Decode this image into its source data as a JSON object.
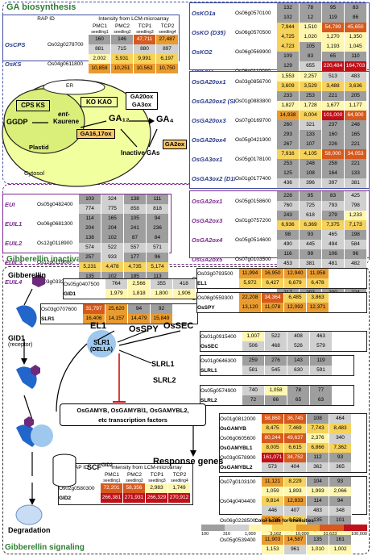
{
  "sections": {
    "biosynthesis": "GA biosynthesis",
    "inactivation": "Gibberellin inactivation",
    "signaling": "Gibberellin signaling"
  },
  "header": {
    "title": "Intensity from LCM-microarray",
    "rap_id": "RAP ID",
    "cols": [
      "PMC1",
      "PMC2",
      "TCP1",
      "TCP2"
    ],
    "subcols": [
      "seedling1",
      "seedling2",
      "seedling3",
      "seedling4"
    ]
  },
  "pathway": {
    "plastid": "Plastid",
    "cytosol": "Cytosol",
    "er": "ER",
    "cps_ks": "CPS KS",
    "ggdp": "GGDP",
    "ent_kaurene_a": "ent-",
    "ent_kaurene_b": "Kaurene",
    "ko_kao": "KO KAO",
    "ga12": "GA₁₂",
    "ga4": "GA₄",
    "ga20ox_ga3ox_a": "GA20ox",
    "ga20ox_ga3ox_b": "GA3ox",
    "ga16_17ox": "GA16,17ox",
    "inactive": "Inactive GAs",
    "ga2ox": "GA2ox"
  },
  "tables": {
    "cps_ks": [
      {
        "name": "OsCPS",
        "id": "Os02g0278700",
        "top": [
          "160",
          "146",
          "47,711",
          "27,487"
        ],
        "bottom": [
          "881",
          "715",
          "880",
          "897"
        ]
      },
      {
        "name": "OsKS",
        "id": "Os04g0611800",
        "top": [
          "2,002",
          "5,931",
          "9,991",
          "6,197"
        ],
        "bottom": [
          "10,859",
          "10,251",
          "10,562",
          "10,750"
        ]
      }
    ],
    "ko": [
      {
        "name": "OsKO1a",
        "id": "Os06g0570100",
        "top": [
          "132",
          "78",
          "95",
          "83"
        ],
        "bottom": [
          "102",
          "12",
          "119",
          "86"
        ]
      },
      {
        "name": "OsKO (D35)",
        "id": "Os06g0570500",
        "top": [
          "7,944",
          "1,510",
          "54,789",
          "45,650"
        ],
        "bottom": [
          "4,725",
          "1,020",
          "1,270",
          "1,350"
        ]
      },
      {
        "name": "OsKO2",
        "id": "Os06g0569900",
        "top": [
          "4,723",
          "105",
          "1,193",
          "1,045"
        ],
        "bottom": [
          "109",
          "83",
          "65",
          "110"
        ]
      },
      {
        "name": "OsKAO",
        "id": "Os06g0110000",
        "top": [
          "129",
          "655",
          "220,484",
          "164,703"
        ],
        "bottom": [
          "1,502",
          "1,343",
          "2,062",
          "1,859"
        ]
      }
    ],
    "ga20ox": [
      {
        "name": "OsGA20ox1",
        "id": "Os03g0856700",
        "top": [
          "1,553",
          "2,257",
          "513",
          "483"
        ],
        "bottom": [
          "3,609",
          "3,529",
          "3,488",
          "3,636"
        ]
      },
      {
        "name": "OsGA20ox2 (SD1)",
        "id": "Os01g0883800",
        "top": [
          "233",
          "253",
          "221",
          "205"
        ],
        "bottom": [
          "1,827",
          "1,728",
          "1,677",
          "1,177"
        ]
      },
      {
        "name": "OsGA20ox3",
        "id": "Os07g0169700",
        "top": [
          "14,938",
          "8,004",
          "101,000",
          "64,900"
        ],
        "bottom": [
          "260",
          "321",
          "237",
          "248"
        ]
      },
      {
        "name": "OsGA20ox4",
        "id": "Os05g0421900",
        "top": [
          "293",
          "133",
          "160",
          "165"
        ],
        "bottom": [
          "267",
          "107",
          "226",
          "221"
        ]
      },
      {
        "name": "OsGA3ox1",
        "id": "Os05g0178100",
        "top": [
          "7,916",
          "4,105",
          "58,000",
          "34,053"
        ],
        "bottom": [
          "253",
          "248",
          "258",
          "221"
        ]
      },
      {
        "name": "OsGA3ox2 (D18)",
        "id": "Os01g0177400",
        "top": [
          "125",
          "108",
          "164",
          "133"
        ],
        "bottom": [
          "436",
          "396",
          "397",
          "381"
        ]
      }
    ],
    "eui": [
      {
        "name": "EUI",
        "id": "Os05g0482400",
        "top": [
          "103",
          "324",
          "138",
          "111"
        ],
        "bottom": [
          "774",
          "775",
          "858",
          "818"
        ]
      },
      {
        "name": "EUIL1",
        "id": "Os06g0681300",
        "top": [
          "114",
          "165",
          "105",
          "94"
        ],
        "bottom": [
          "204",
          "204",
          "241",
          "236"
        ]
      },
      {
        "name": "EUIL2",
        "id": "Os12g0118900",
        "top": [
          "138",
          "102",
          "87",
          "84"
        ],
        "bottom": [
          "574",
          "522",
          "557",
          "571"
        ]
      },
      {
        "name": "EUIL3",
        "id": "Os12g0119000",
        "top": [
          "257",
          "933",
          "177",
          "96"
        ],
        "bottom": [
          "5,231",
          "4,478",
          "4,735",
          "5,174"
        ]
      },
      {
        "name": "EUIL4",
        "id": "Os03g0332000",
        "top": [
          "135",
          "102",
          "185",
          "113"
        ],
        "bottom": [
          "532",
          "513",
          "549",
          "549"
        ]
      }
    ],
    "ga2ox": [
      {
        "name": "OsGA2ox1",
        "id": "Os05g0158600",
        "top": [
          "228",
          "95",
          "83",
          "425"
        ],
        "bottom": [
          "760",
          "725",
          "793",
          "798"
        ]
      },
      {
        "name": "OsGA2ox3",
        "id": "Os01g0757200",
        "top": [
          "243",
          "618",
          "279",
          "1,233"
        ],
        "bottom": [
          "6,936",
          "6,369",
          "7,375",
          "7,173"
        ]
      },
      {
        "name": "OsGA2ox4",
        "id": "Os05g0514600",
        "top": [
          "98",
          "93",
          "465",
          "198"
        ],
        "bottom": [
          "490",
          "445",
          "494",
          "584"
        ]
      },
      {
        "name": "OsGA2ox5",
        "id": "Os07g0103500",
        "top": [
          "116",
          "99",
          "106",
          "96"
        ],
        "bottom": [
          "453",
          "381",
          "481",
          "482"
        ]
      },
      {
        "name": "OsGA2ox6",
        "id": "Os04g0522500",
        "top": [
          "96",
          "103",
          "116",
          "104"
        ],
        "bottom": [
          "624",
          "613",
          "618",
          "592"
        ]
      },
      {
        "name": "OsGA2ox7",
        "id": "Os01g0560900",
        "top": [
          "217",
          "203",
          "200",
          "224"
        ],
        "bottom": [
          "1,109",
          "1,001",
          "1,031",
          "1,081"
        ]
      }
    ],
    "gid1": {
      "id": "Os05g0407500",
      "name": "GID1",
      "top": [
        "764",
        "2,566",
        "355",
        "418"
      ],
      "bottom": [
        "1,979",
        "1,818",
        "1,800",
        "1,906"
      ]
    },
    "slr1": {
      "id": "Os03g0707600",
      "name": "SLR1",
      "top": [
        "31,797",
        "25,620",
        "94",
        "92"
      ],
      "bottom": [
        "16,406",
        "14,157",
        "14,479",
        "15,849"
      ]
    },
    "el1": {
      "id": "Os03g0793500",
      "name": "EL1",
      "top": [
        "11,994",
        "16,950",
        "12,940",
        "11,958"
      ],
      "bottom": [
        "5,972",
        "6,427",
        "6,679",
        "6,478"
      ]
    },
    "osspy": {
      "id": "Os08g0559300",
      "name": "OsSPY",
      "top": [
        "22,208",
        "34,364",
        "6,485",
        "3,863"
      ],
      "bottom": [
        "13,120",
        "11,078",
        "12,092",
        "12,371"
      ]
    },
    "ossec": {
      "id": "Os01g0915400",
      "name": "OsSEC",
      "top": [
        "1,007",
        "522",
        "408",
        "463"
      ],
      "bottom": [
        "506",
        "468",
        "526",
        "579"
      ]
    },
    "slrl1": {
      "id": "Os01g0646300",
      "name": "SLRL1",
      "top": [
        "259",
        "276",
        "143",
        "119"
      ],
      "bottom": [
        "581",
        "545",
        "630",
        "591"
      ]
    },
    "slrl2": {
      "id": "Os05g0574900",
      "name": "SLRL2",
      "top": [
        "740",
        "1,058",
        "78",
        "77"
      ],
      "bottom": [
        "72",
        "66",
        "65",
        "63"
      ]
    },
    "gamyb": [
      {
        "id": "Os01g0812000",
        "name": "OsGAMYB",
        "top": [
          "58,860",
          "36,745",
          "108",
          "464"
        ],
        "bottom": [
          "8,475",
          "7,469",
          "7,743",
          "8,483"
        ]
      },
      {
        "id": "Os06g0605600",
        "name": "OsGAMYBL1",
        "top": [
          "80,244",
          "49,637",
          "2,376",
          "340"
        ],
        "bottom": [
          "8,005",
          "6,615",
          "6,866",
          "7,362"
        ]
      },
      {
        "id": "Os03g0578900",
        "name": "OsGAMYBL2",
        "top": [
          "161,071",
          "34,752",
          "112",
          "93"
        ],
        "bottom": [
          "573",
          "404",
          "362",
          "365"
        ]
      }
    ],
    "response": [
      {
        "id": "Os07g0103100",
        "top": [
          "11,121",
          "8,229",
          "104",
          "93"
        ],
        "bottom": [
          "1,059",
          "1,893",
          "1,993",
          "2,066"
        ]
      },
      {
        "id": "Os04g0404400",
        "top": [
          "9,814",
          "12,833",
          "114",
          "94"
        ],
        "bottom": [
          "446",
          "407",
          "483",
          "348"
        ]
      },
      {
        "id": "Os06g0228500",
        "top": [
          "13,785",
          "8,528",
          "135",
          "101"
        ],
        "bottom": [
          "1,680",
          "1,592",
          "1,724",
          "1,655"
        ]
      },
      {
        "id": "Os05g0539400",
        "top": [
          "11,903",
          "14,587",
          "135",
          "161"
        ],
        "bottom": [
          "1,153",
          "961",
          "1,010",
          "1,002"
        ]
      }
    ],
    "gid2": {
      "id": "Os02g0580300",
      "name": "GID2",
      "top": [
        "72,201",
        "58,356",
        "2,983",
        "1,749"
      ],
      "bottom": [
        "266,381",
        "271,931",
        "266,329",
        "270,912"
      ]
    }
  },
  "signaling": {
    "gibberellin": "Gibberellin",
    "gid1": "GID1",
    "receptor": "(receptor)",
    "el1": "EL1",
    "osspy": "OsSPY",
    "ossec": "OsSEC",
    "slr1": "SLR1",
    "della": "(DELLA)",
    "slrl1": "SLRL1",
    "slrl2": "SLRL2",
    "tf_line1": "OsGAMYB, OsGAMYBl1, OsGAMYBL2,",
    "tf_line2": "etc transcription factors",
    "scf": "SCF",
    "scf_sup": "GID2",
    "response": "Response genes",
    "degradation": "Degradation"
  },
  "colorscale": {
    "title": "Color scale for intensities",
    "ticks": [
      "100",
      "316",
      "1,000",
      "3,162",
      "10,000",
      "31,623",
      "100,000"
    ],
    "colors": [
      "#9e9e9e",
      "#d0d0d0",
      "#fff7b0",
      "#f6d25a",
      "#e99b2f",
      "#d65a1e",
      "#c0101a"
    ]
  }
}
